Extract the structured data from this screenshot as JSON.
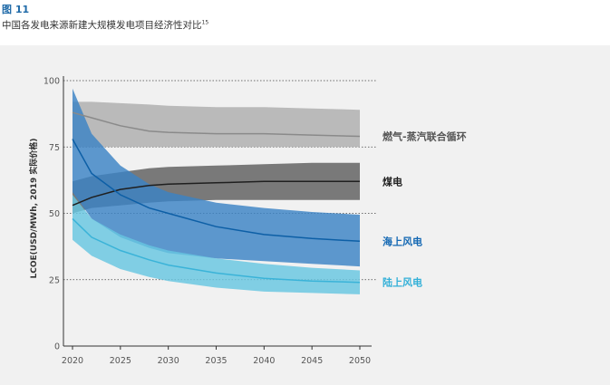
{
  "header": {
    "figure_label": "图 11",
    "title": "中国各发电来源新建大规模发电项目经济性对比",
    "footnote": "15"
  },
  "chart_data": {
    "type": "area",
    "ylabel": "LCOE(USD/MWh, 2019 实际价格)",
    "xlabel": "",
    "ylim": [
      0,
      100
    ],
    "xlim": [
      2020,
      2050
    ],
    "y_ticks": [
      0,
      25,
      50,
      75,
      100
    ],
    "x_ticks": [
      2020,
      2025,
      2030,
      2035,
      2040,
      2045,
      2050
    ],
    "grid": "dotted horizontal lines at 25, 50, 75, 100",
    "x": [
      2020,
      2022,
      2025,
      2028,
      2030,
      2035,
      2040,
      2045,
      2050
    ],
    "series": [
      {
        "name": "燃气-蒸汽联合循环",
        "color": "#b4b4b4",
        "line_color": "#8a8a8a",
        "label_color": "#555555",
        "central": [
          88,
          86,
          83,
          81,
          80.5,
          80,
          80,
          79.5,
          79
        ],
        "low": [
          75,
          75,
          75,
          75,
          75,
          75,
          75,
          75,
          75
        ],
        "high": [
          92,
          92,
          91.5,
          91,
          90.5,
          90,
          90,
          89.5,
          89
        ]
      },
      {
        "name": "煤电",
        "color": "#5e5e5e",
        "line_color": "#1f1f1f",
        "label_color": "#222222",
        "central": [
          53,
          56,
          59,
          60.5,
          61,
          61.5,
          62,
          62,
          62
        ],
        "low": [
          50,
          52,
          53,
          54,
          54.5,
          55,
          55,
          55,
          55
        ],
        "high": [
          62,
          64,
          65.5,
          67,
          67.5,
          68,
          68.5,
          69,
          69
        ]
      },
      {
        "name": "海上风电",
        "color": "#3a82c4",
        "line_color": "#0d5fa6",
        "label_color": "#1468b3",
        "central": [
          78,
          65,
          57,
          52,
          50,
          45,
          42,
          40.5,
          39.5
        ],
        "low": [
          58,
          48,
          41,
          37,
          35,
          33,
          32,
          31,
          30
        ],
        "high": [
          97,
          80,
          68,
          61,
          58,
          54,
          52,
          50.5,
          49.5
        ]
      },
      {
        "name": "陆上风电",
        "color": "#66c6e0",
        "line_color": "#3ab3d8",
        "label_color": "#33b0d8",
        "central": [
          48,
          41,
          36,
          32.5,
          30.5,
          27.5,
          25.5,
          24.5,
          24
        ],
        "low": [
          40,
          34,
          29,
          26,
          24.5,
          22,
          20.5,
          20,
          19.5
        ],
        "high": [
          57,
          48,
          42,
          38,
          36,
          33,
          31,
          29.5,
          28.5
        ]
      }
    ]
  }
}
